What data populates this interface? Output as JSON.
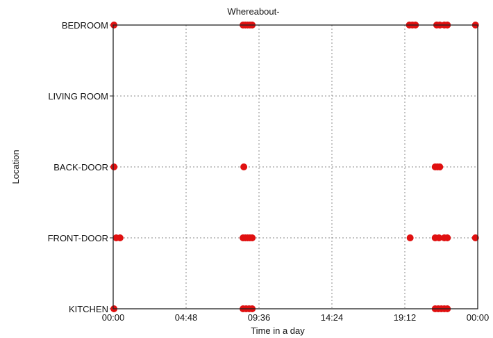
{
  "chart_data": {
    "type": "scatter",
    "title": "Whereabout-",
    "xlabel": "Time in a day",
    "ylabel": "Location",
    "xlim": [
      0,
      24
    ],
    "x_ticks": [
      {
        "value": 0,
        "label": "00:00"
      },
      {
        "value": 4.8,
        "label": "04:48"
      },
      {
        "value": 9.6,
        "label": "09:36"
      },
      {
        "value": 14.4,
        "label": "14:24"
      },
      {
        "value": 19.2,
        "label": "19:12"
      },
      {
        "value": 24,
        "label": "00:00"
      }
    ],
    "categories": [
      "KITCHEN",
      "FRONT-DOOR",
      "BACK-DOOR",
      "LIVING ROOM",
      "BEDROOM"
    ],
    "grid": true,
    "marker_color": "#e01010",
    "points": [
      {
        "x": 0.05,
        "y": "BEDROOM"
      },
      {
        "x": 8.55,
        "y": "BEDROOM"
      },
      {
        "x": 8.7,
        "y": "BEDROOM"
      },
      {
        "x": 8.85,
        "y": "BEDROOM"
      },
      {
        "x": 9.0,
        "y": "BEDROOM"
      },
      {
        "x": 9.15,
        "y": "BEDROOM"
      },
      {
        "x": 19.5,
        "y": "BEDROOM"
      },
      {
        "x": 19.7,
        "y": "BEDROOM"
      },
      {
        "x": 19.9,
        "y": "BEDROOM"
      },
      {
        "x": 21.3,
        "y": "BEDROOM"
      },
      {
        "x": 21.5,
        "y": "BEDROOM"
      },
      {
        "x": 21.8,
        "y": "BEDROOM"
      },
      {
        "x": 22.0,
        "y": "BEDROOM"
      },
      {
        "x": 23.85,
        "y": "BEDROOM"
      },
      {
        "x": 0.05,
        "y": "BACK-DOOR"
      },
      {
        "x": 8.6,
        "y": "BACK-DOOR"
      },
      {
        "x": 21.2,
        "y": "BACK-DOOR"
      },
      {
        "x": 21.35,
        "y": "BACK-DOOR"
      },
      {
        "x": 21.5,
        "y": "BACK-DOOR"
      },
      {
        "x": 0.2,
        "y": "FRONT-DOOR"
      },
      {
        "x": 0.45,
        "y": "FRONT-DOOR"
      },
      {
        "x": 8.55,
        "y": "FRONT-DOOR"
      },
      {
        "x": 8.7,
        "y": "FRONT-DOOR"
      },
      {
        "x": 8.85,
        "y": "FRONT-DOOR"
      },
      {
        "x": 9.0,
        "y": "FRONT-DOOR"
      },
      {
        "x": 9.15,
        "y": "FRONT-DOOR"
      },
      {
        "x": 19.55,
        "y": "FRONT-DOOR"
      },
      {
        "x": 21.2,
        "y": "FRONT-DOOR"
      },
      {
        "x": 21.45,
        "y": "FRONT-DOOR"
      },
      {
        "x": 21.8,
        "y": "FRONT-DOOR"
      },
      {
        "x": 22.0,
        "y": "FRONT-DOOR"
      },
      {
        "x": 23.85,
        "y": "FRONT-DOOR"
      },
      {
        "x": 0.05,
        "y": "KITCHEN"
      },
      {
        "x": 8.55,
        "y": "KITCHEN"
      },
      {
        "x": 8.75,
        "y": "KITCHEN"
      },
      {
        "x": 8.95,
        "y": "KITCHEN"
      },
      {
        "x": 9.15,
        "y": "KITCHEN"
      },
      {
        "x": 21.2,
        "y": "KITCHEN"
      },
      {
        "x": 21.4,
        "y": "KITCHEN"
      },
      {
        "x": 21.6,
        "y": "KITCHEN"
      },
      {
        "x": 21.8,
        "y": "KITCHEN"
      },
      {
        "x": 22.0,
        "y": "KITCHEN"
      }
    ]
  }
}
